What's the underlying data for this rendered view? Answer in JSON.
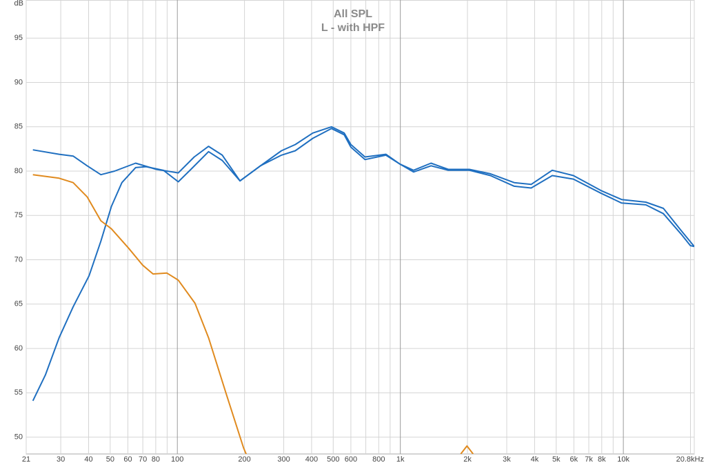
{
  "chart_data": {
    "type": "line",
    "title": "All SPL",
    "subtitle": "L - with HPF",
    "y_label": "dB",
    "xscale": "log",
    "grid": true,
    "xlim": [
      21,
      20800
    ],
    "ylim": [
      48.1,
      99.3
    ],
    "xticks": [
      21,
      30,
      40,
      50,
      60,
      70,
      80,
      100,
      200,
      300,
      400,
      500,
      600,
      800,
      {
        "value": 1000,
        "label": "1k"
      },
      {
        "value": 2000,
        "label": "2k"
      },
      {
        "value": 3000,
        "label": "3k"
      },
      {
        "value": 4000,
        "label": "4k"
      },
      {
        "value": 5000,
        "label": "5k"
      },
      {
        "value": 6000,
        "label": "6k"
      },
      {
        "value": 7000,
        "label": "7k"
      },
      {
        "value": 8000,
        "label": "8k"
      },
      {
        "value": 10000,
        "label": "10k"
      },
      {
        "value": 20800,
        "label": "20.8kHz"
      }
    ],
    "xminor": [
      90,
      700,
      900,
      9000,
      20000
    ],
    "yticks": [
      50,
      55,
      60,
      65,
      70,
      75,
      80,
      85,
      90,
      95
    ],
    "series": [
      {
        "color": "#1f6fc0",
        "x": [
          22.5,
          25.6,
          29.5,
          34.1,
          40.2,
          45.4,
          50.6,
          56.4,
          65,
          72.4,
          86.6,
          101,
          115,
          138,
          159,
          191,
          236,
          293,
          338,
          405,
          491,
          560,
          600,
          694,
          861,
          995,
          1146,
          1373,
          1640,
          2040,
          2535,
          3240,
          3860,
          4800,
          5970,
          7950,
          9820,
          12610,
          15120,
          18160,
          19970,
          20800
        ],
        "values": [
          54.1,
          57,
          61.2,
          64.7,
          68.2,
          72.1,
          76,
          78.7,
          80.4,
          80.5,
          80.1,
          78.8,
          80.2,
          82.2,
          81.2,
          78.9,
          80.6,
          81.8,
          82.3,
          83.7,
          84.8,
          84.1,
          82.7,
          81.3,
          81.8,
          80.8,
          79.9,
          80.6,
          80.1,
          80.1,
          79.5,
          78.3,
          78.1,
          79.5,
          79.1,
          77.5,
          76.4,
          76.2,
          75.2,
          72.9,
          71.6,
          71.5
        ]
      },
      {
        "color": "#1f6fc0",
        "x": [
          22.5,
          29.5,
          34.1,
          39.4,
          45.4,
          52.3,
          65,
          80.5,
          101,
          119,
          138,
          159,
          191,
          236,
          293,
          338,
          405,
          491,
          560,
          600,
          694,
          861,
          995,
          1146,
          1373,
          1640,
          2040,
          2535,
          3240,
          3860,
          4800,
          5970,
          7950,
          9820,
          12610,
          15120,
          18160,
          20800
        ],
        "values": [
          82.4,
          81.9,
          81.7,
          80.6,
          79.6,
          80,
          80.9,
          80.2,
          79.8,
          81.6,
          82.8,
          81.8,
          78.9,
          80.6,
          82.3,
          83,
          84.3,
          85,
          84.3,
          83,
          81.6,
          81.9,
          80.8,
          80.1,
          80.9,
          80.2,
          80.2,
          79.7,
          78.7,
          78.5,
          80.1,
          79.5,
          77.8,
          76.8,
          76.5,
          75.8,
          73.3,
          71.5
        ]
      },
      {
        "color": "#e08a1e",
        "x": [
          22.5,
          29.5,
          34.1,
          39.4,
          45.4,
          50.6,
          60.5,
          69.9,
          77.8,
          89.8,
          101,
          120,
          138,
          165,
          198,
          205,
          1200,
          1866,
          1990,
          2120
        ],
        "values": [
          79.6,
          79.2,
          78.7,
          77.1,
          74.4,
          73.5,
          71.3,
          69.4,
          68.4,
          68.5,
          67.7,
          65.1,
          61.2,
          55,
          48.8,
          47.9,
          null,
          48.1,
          49,
          48.1
        ]
      }
    ]
  }
}
